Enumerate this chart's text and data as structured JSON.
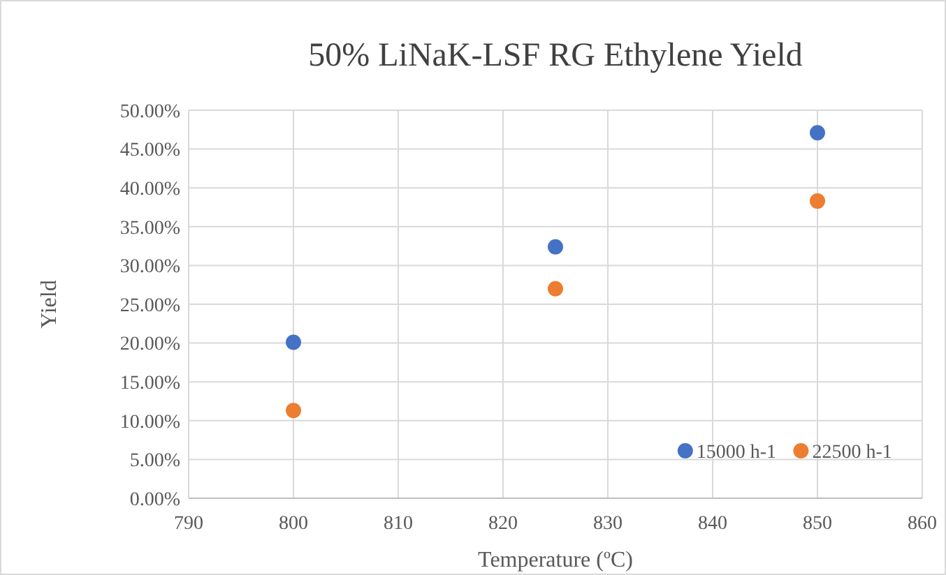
{
  "chart_data": {
    "type": "scatter",
    "title": "50% LiNaK-LSF RG Ethylene Yield",
    "xlabel": "Temperature (ºC)",
    "ylabel": "Yield",
    "series": [
      {
        "name": "15000 h-1",
        "color": "#4472c4",
        "x": [
          800,
          825,
          850
        ],
        "values": [
          20.1,
          32.4,
          47.1
        ]
      },
      {
        "name": "22500 h-1",
        "color": "#ed7d31",
        "x": [
          800,
          825,
          850
        ],
        "values": [
          11.3,
          27.0,
          38.3
        ]
      }
    ],
    "xlim": [
      790,
      860
    ],
    "xticks": [
      790,
      800,
      810,
      820,
      830,
      840,
      850,
      860
    ],
    "ylim": [
      0,
      50
    ],
    "yticks": [
      {
        "value": 0,
        "label": "0.00%"
      },
      {
        "value": 5,
        "label": "5.00%"
      },
      {
        "value": 10,
        "label": "10.00%"
      },
      {
        "value": 15,
        "label": "15.00%"
      },
      {
        "value": 20,
        "label": "20.00%"
      },
      {
        "value": 25,
        "label": "25.00%"
      },
      {
        "value": 30,
        "label": "30.00%"
      },
      {
        "value": 35,
        "label": "35.00%"
      },
      {
        "value": 40,
        "label": "40.00%"
      },
      {
        "value": 45,
        "label": "45.00%"
      },
      {
        "value": 50,
        "label": "50.00%"
      }
    ],
    "grid": true,
    "legend": "bottom right",
    "marker": "circle"
  }
}
